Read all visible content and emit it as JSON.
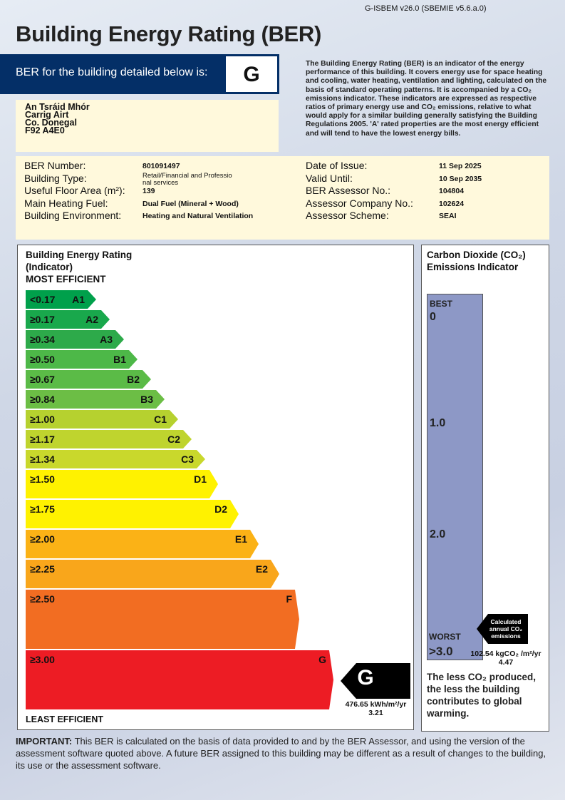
{
  "header": {
    "software_version": "G-ISBEM v26.0 (SBEMIE v5.6.a.0)",
    "title": "Building Energy Rating (BER)"
  },
  "ber_banner": {
    "label": "BER for the building detailed below is:",
    "rating": "G"
  },
  "intro_text": "The Building Energy Rating (BER) is an indicator of the energy performance of this building. It covers energy use for space heating and cooling, water heating, ventilation and lighting, calculated on the basis of standard operating patterns. It is accompanied by a CO₂ emissions indicator. These indicators are expressed as respective ratios of primary energy use and CO₂ emissions, relative to what would apply for a similar building generally satisfying the Building Regulations 2005. 'A' rated properties are the most energy efficient and will tend to have the lowest energy bills.",
  "address": [
    "An Tsráid Mhór",
    "Carrig Airt",
    "Co. Donegal",
    "F92 A4E0"
  ],
  "details_left": [
    {
      "label": "BER Number:",
      "value": "801091497"
    },
    {
      "label": "Building Type:",
      "value": "Retail/Financial and Professio nal services"
    },
    {
      "label": "Useful Floor Area (m²):",
      "value": "139"
    },
    {
      "label": "Main Heating Fuel:",
      "value": "Dual Fuel (Mineral + Wood)"
    },
    {
      "label": "Building Environment:",
      "value": "Heating and Natural Ventilation"
    }
  ],
  "details_right": [
    {
      "label": "Date of Issue:",
      "value": "11 Sep 2025"
    },
    {
      "label": "Valid Until:",
      "value": "10 Sep 2035"
    },
    {
      "label": "BER Assessor No.:",
      "value": "104804"
    },
    {
      "label": "Assessor Company No.:",
      "value": "102624"
    },
    {
      "label": "Assessor Scheme:",
      "value": "SEAI"
    }
  ],
  "rating_scale": {
    "title_line1": "Building Energy Rating",
    "title_line2": "(Indicator)",
    "most_efficient": "MOST EFFICIENT",
    "least_efficient": "LEAST EFFICIENT",
    "bands": [
      {
        "threshold": "<0.17",
        "label": "A1",
        "color": "#00a04b"
      },
      {
        "threshold": "≥0.17",
        "label": "A2",
        "color": "#19a84c"
      },
      {
        "threshold": "≥0.34",
        "label": "A3",
        "color": "#2daa4a"
      },
      {
        "threshold": "≥0.50",
        "label": "B1",
        "color": "#4db848"
      },
      {
        "threshold": "≥0.67",
        "label": "B2",
        "color": "#5bbb47"
      },
      {
        "threshold": "≥0.84",
        "label": "B3",
        "color": "#6cbe45"
      },
      {
        "threshold": "≥1.00",
        "label": "C1",
        "color": "#b6d12f"
      },
      {
        "threshold": "≥1.17",
        "label": "C2",
        "color": "#bfd42e"
      },
      {
        "threshold": "≥1.34",
        "label": "C3",
        "color": "#c9d82c"
      },
      {
        "threshold": "≥1.50",
        "label": "D1",
        "color": "#fff200"
      },
      {
        "threshold": "≥1.75",
        "label": "D2",
        "color": "#fff200"
      },
      {
        "threshold": "≥2.00",
        "label": "E1",
        "color": "#fbb216"
      },
      {
        "threshold": "≥2.25",
        "label": "E2",
        "color": "#f9a61b"
      },
      {
        "threshold": "≥2.50",
        "label": "F",
        "color": "#f26d22"
      },
      {
        "threshold": "≥3.00",
        "label": "G",
        "color": "#ed1c24"
      }
    ],
    "result": {
      "rating": "G",
      "energy": "476.65 kWh/m²/yr",
      "ratio": "3.21"
    }
  },
  "co2": {
    "title_line1": "Carbon Dioxide (CO₂)",
    "title_line2": "Emissions Indicator",
    "best": "BEST",
    "worst": "WORST",
    "ticks": [
      "0",
      "1.0",
      "2.0",
      ">3.0"
    ],
    "pointer_label": "Calculated annual CO₂ emissions",
    "value": "102.54 kgCO₂ /m²/yr",
    "ratio": "4.47",
    "note": "The less CO₂ produced, the less the building contributes to global warming.",
    "bar_color": "#8d98c6"
  },
  "footer": {
    "important_label": "IMPORTANT:",
    "text": " This BER is calculated on the basis of data provided to and by the BER Assessor, and using the version of the assessment software quoted above. A future BER assigned to this building may be different as a result of changes to the building, its use or the assessment software."
  }
}
